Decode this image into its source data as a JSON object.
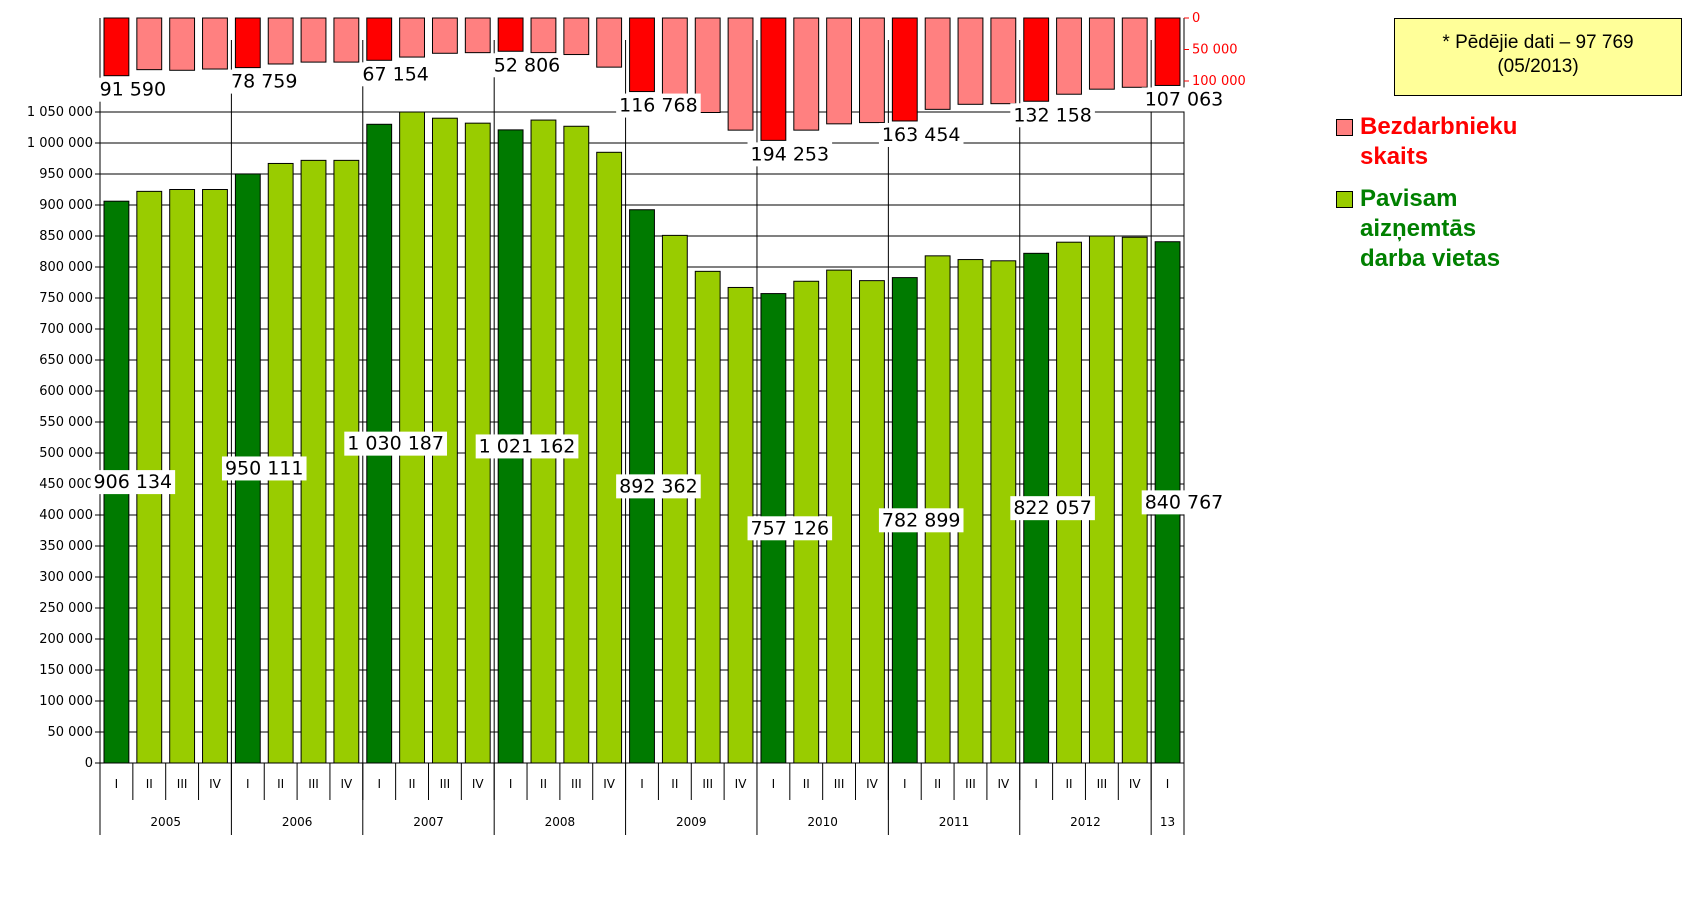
{
  "note": {
    "line1": "* Pēdējie dati – 97 769",
    "line2": "(05/2013)"
  },
  "legend": [
    {
      "label": "Bezdarbnieku\nskaits",
      "color": "#ff0000",
      "swatch": "#ff8080"
    },
    {
      "label": "Pavisam\naizņemtās\ndarba vietas",
      "color": "#008000",
      "swatch": "#99cc00"
    }
  ],
  "colors": {
    "employed_year_first": "#007a00",
    "employed_other": "#99cc00",
    "unemployed_year_first": "#ff0000",
    "unemployed_other": "#ff8080"
  },
  "chart_data": {
    "type": "bar",
    "categories": [
      "2005-I",
      "2005-II",
      "2005-III",
      "2005-IV",
      "2006-I",
      "2006-II",
      "2006-III",
      "2006-IV",
      "2007-I",
      "2007-II",
      "2007-III",
      "2007-IV",
      "2008-I",
      "2008-II",
      "2008-III",
      "2008-IV",
      "2009-I",
      "2009-II",
      "2009-III",
      "2009-IV",
      "2010-I",
      "2010-II",
      "2010-III",
      "2010-IV",
      "2011-I",
      "2011-II",
      "2011-III",
      "2011-IV",
      "2012-I",
      "2012-II",
      "2012-III",
      "2012-IV",
      "2013-I"
    ],
    "quarters": [
      "I",
      "II",
      "III",
      "IV",
      "I",
      "II",
      "III",
      "IV",
      "I",
      "II",
      "III",
      "IV",
      "I",
      "II",
      "III",
      "IV",
      "I",
      "II",
      "III",
      "IV",
      "I",
      "II",
      "III",
      "IV",
      "I",
      "II",
      "III",
      "IV",
      "I",
      "II",
      "III",
      "IV",
      "I"
    ],
    "years": [
      {
        "label": "2005",
        "start": 0,
        "count": 4
      },
      {
        "label": "2006",
        "start": 4,
        "count": 4
      },
      {
        "label": "2007",
        "start": 8,
        "count": 4
      },
      {
        "label": "2008",
        "start": 12,
        "count": 4
      },
      {
        "label": "2009",
        "start": 16,
        "count": 4
      },
      {
        "label": "2010",
        "start": 20,
        "count": 4
      },
      {
        "label": "2011",
        "start": 24,
        "count": 4
      },
      {
        "label": "2012",
        "start": 28,
        "count": 4
      },
      {
        "label": "13",
        "start": 32,
        "count": 1
      }
    ],
    "series": [
      {
        "name": "Pavisam aizņemtās darba vietas",
        "values": [
          906134,
          922000,
          925000,
          925000,
          950111,
          967000,
          972000,
          972000,
          1030187,
          1050000,
          1040000,
          1032000,
          1021162,
          1037000,
          1027000,
          985000,
          892362,
          851000,
          793000,
          767000,
          757126,
          777000,
          795000,
          778000,
          782899,
          818000,
          812000,
          810000,
          822057,
          840000,
          850000,
          848000,
          840767
        ]
      },
      {
        "name": "Bezdarbnieku skaits",
        "values": [
          91590,
          82000,
          83000,
          81000,
          78759,
          73000,
          70000,
          70000,
          67154,
          62000,
          56000,
          55000,
          52806,
          55000,
          58000,
          78000,
          116768,
          135000,
          150000,
          178000,
          194253,
          178000,
          168000,
          166000,
          163454,
          145000,
          137000,
          136000,
          132158,
          121000,
          113000,
          110000,
          107063
        ]
      }
    ],
    "employed_labels": [
      {
        "index": 0,
        "text": "906 134"
      },
      {
        "index": 4,
        "text": "950 111"
      },
      {
        "index": 8,
        "text": "1 030 187"
      },
      {
        "index": 12,
        "text": "1 021 162"
      },
      {
        "index": 16,
        "text": "892 362"
      },
      {
        "index": 20,
        "text": "757 126"
      },
      {
        "index": 24,
        "text": "782 899"
      },
      {
        "index": 28,
        "text": "822 057"
      },
      {
        "index": 32,
        "text": "840 767"
      }
    ],
    "unemployed_labels": [
      {
        "index": 0,
        "text": "91 590"
      },
      {
        "index": 4,
        "text": "78 759"
      },
      {
        "index": 8,
        "text": "67 154"
      },
      {
        "index": 12,
        "text": "52 806"
      },
      {
        "index": 16,
        "text": "116 768"
      },
      {
        "index": 20,
        "text": "194 253"
      },
      {
        "index": 24,
        "text": "163 454"
      },
      {
        "index": 28,
        "text": "132 158"
      },
      {
        "index": 32,
        "text": "107 063"
      }
    ],
    "y_ticks": [
      "0",
      "50 000",
      "100 000",
      "150 000",
      "200 000",
      "250 000",
      "300 000",
      "350 000",
      "400 000",
      "450 000",
      "500 000",
      "550 000",
      "600 000",
      "650 000",
      "700 000",
      "750 000",
      "800 000",
      "850 000",
      "900 000",
      "950 000",
      "1 000 000",
      "1 050 000"
    ],
    "y_tick_values": [
      0,
      50000,
      100000,
      150000,
      200000,
      250000,
      300000,
      350000,
      400000,
      450000,
      500000,
      550000,
      600000,
      650000,
      700000,
      750000,
      800000,
      850000,
      900000,
      950000,
      1000000,
      1050000
    ],
    "ylim": [
      0,
      1050000
    ],
    "unemployed_ticks": [
      "0",
      "50 000",
      "100 000"
    ],
    "unemployed_tick_values": [
      0,
      50000,
      100000
    ],
    "unemployed_axis_inverted": true,
    "grid": true,
    "legend_position": "right"
  }
}
